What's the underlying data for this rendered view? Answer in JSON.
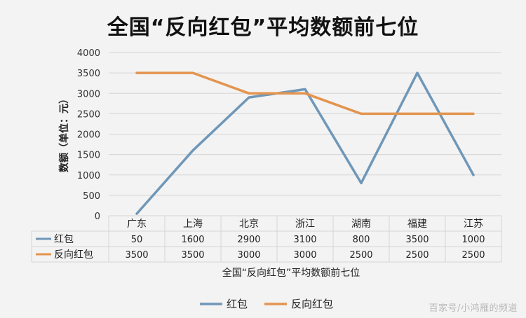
{
  "watermark": "百家号/小鸿雁的频道",
  "chart_data": {
    "type": "line",
    "title": "全国“反向红包”平均数额前七位",
    "xlabel": "全国“反向红包”平均数额前七位",
    "ylabel": "数额（单位：元）",
    "ylim": [
      0,
      4000
    ],
    "yticks": [
      0,
      500,
      1000,
      1500,
      2000,
      2500,
      3000,
      3500,
      4000
    ],
    "categories": [
      "广东",
      "上海",
      "北京",
      "浙江",
      "湖南",
      "福建",
      "江苏"
    ],
    "grid": true,
    "legend": "bottom",
    "series": [
      {
        "name": "红包",
        "color": "#6f97b8",
        "values": [
          50,
          1600,
          2900,
          3100,
          800,
          3500,
          1000
        ],
        "value_labels": [
          "50",
          "1600",
          "2900",
          "3100",
          "800",
          "3500",
          "1000"
        ]
      },
      {
        "name": "反向红包",
        "color": "#e3944e",
        "values": [
          3500,
          3500,
          3000,
          3000,
          2500,
          2500,
          2500
        ],
        "value_labels": [
          "3500",
          "3500",
          "3000",
          "3000",
          "2500",
          "2500",
          "2500"
        ]
      }
    ]
  }
}
